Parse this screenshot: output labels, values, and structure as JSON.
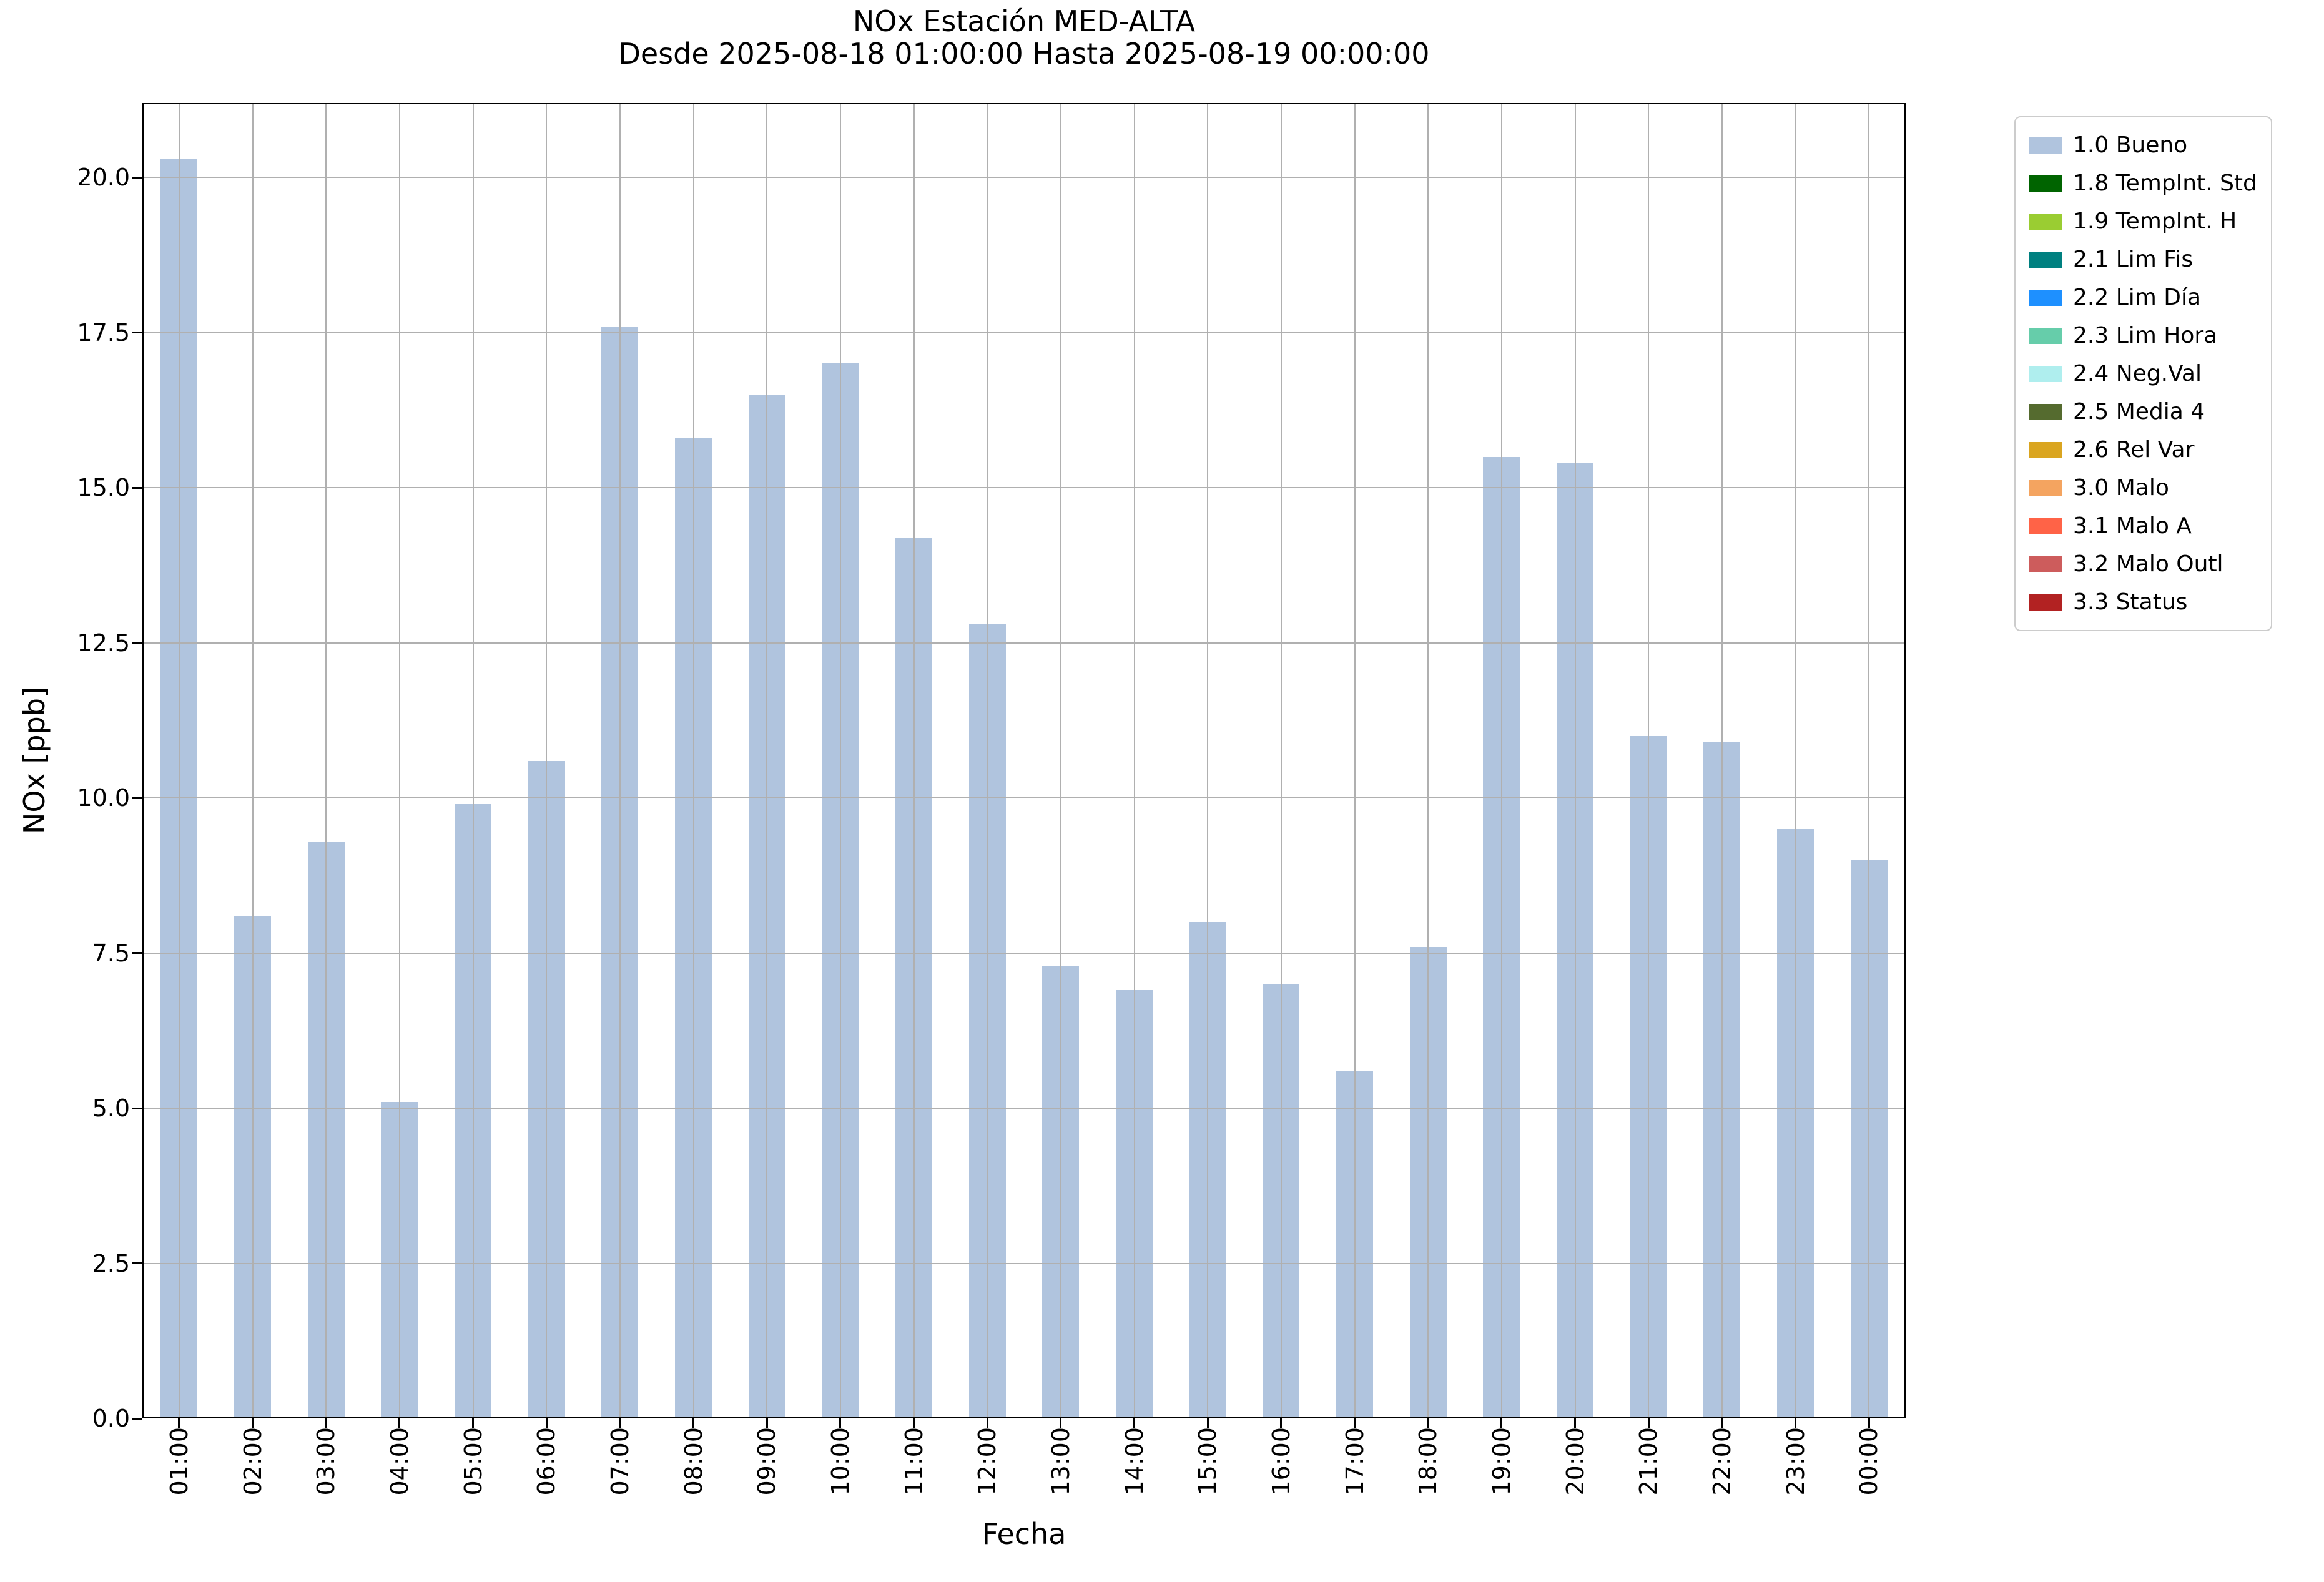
{
  "chart_data": {
    "type": "bar",
    "title": "NOx Estación MED-ALTA",
    "subtitle": "Desde 2025-08-18 01:00:00 Hasta 2025-08-19 00:00:00",
    "xlabel": "Fecha",
    "ylabel": "NOx [ppb]",
    "categories": [
      "01:00",
      "02:00",
      "03:00",
      "04:00",
      "05:00",
      "06:00",
      "07:00",
      "08:00",
      "09:00",
      "10:00",
      "11:00",
      "12:00",
      "13:00",
      "14:00",
      "15:00",
      "16:00",
      "17:00",
      "18:00",
      "19:00",
      "20:00",
      "21:00",
      "22:00",
      "23:00",
      "00:00"
    ],
    "values": [
      20.3,
      8.1,
      9.3,
      5.1,
      9.9,
      10.6,
      17.6,
      15.8,
      16.5,
      17.0,
      14.2,
      12.8,
      7.3,
      6.9,
      8.0,
      7.0,
      5.6,
      7.6,
      15.5,
      15.4,
      11.0,
      10.9,
      9.5,
      9.0
    ],
    "bar_color": "#b0c4de",
    "grid": true,
    "grid_color": "#b0b0b0",
    "ylim": [
      0,
      21.2
    ],
    "yticks": [
      0.0,
      2.5,
      5.0,
      7.5,
      10.0,
      12.5,
      15.0,
      17.5,
      20.0
    ],
    "legend_position": "upper right",
    "legend": [
      {
        "label": "1.0 Bueno",
        "color": "#b0c4de"
      },
      {
        "label": "1.8 TempInt. Std",
        "color": "#006400"
      },
      {
        "label": "1.9 TempInt. H",
        "color": "#9acd32"
      },
      {
        "label": "2.1 Lim Fis",
        "color": "#008080"
      },
      {
        "label": "2.2 Lim Día",
        "color": "#1e90ff"
      },
      {
        "label": "2.3 Lim Hora",
        "color": "#66cdaa"
      },
      {
        "label": "2.4 Neg.Val",
        "color": "#afeeee"
      },
      {
        "label": "2.5 Media 4",
        "color": "#556b2f"
      },
      {
        "label": "2.6 Rel Var",
        "color": "#daa520"
      },
      {
        "label": "3.0 Malo",
        "color": "#f4a460"
      },
      {
        "label": "3.1 Malo A",
        "color": "#ff6347"
      },
      {
        "label": "3.2 Malo Outl",
        "color": "#cd5c5c"
      },
      {
        "label": "3.3 Status",
        "color": "#b22222"
      }
    ]
  }
}
